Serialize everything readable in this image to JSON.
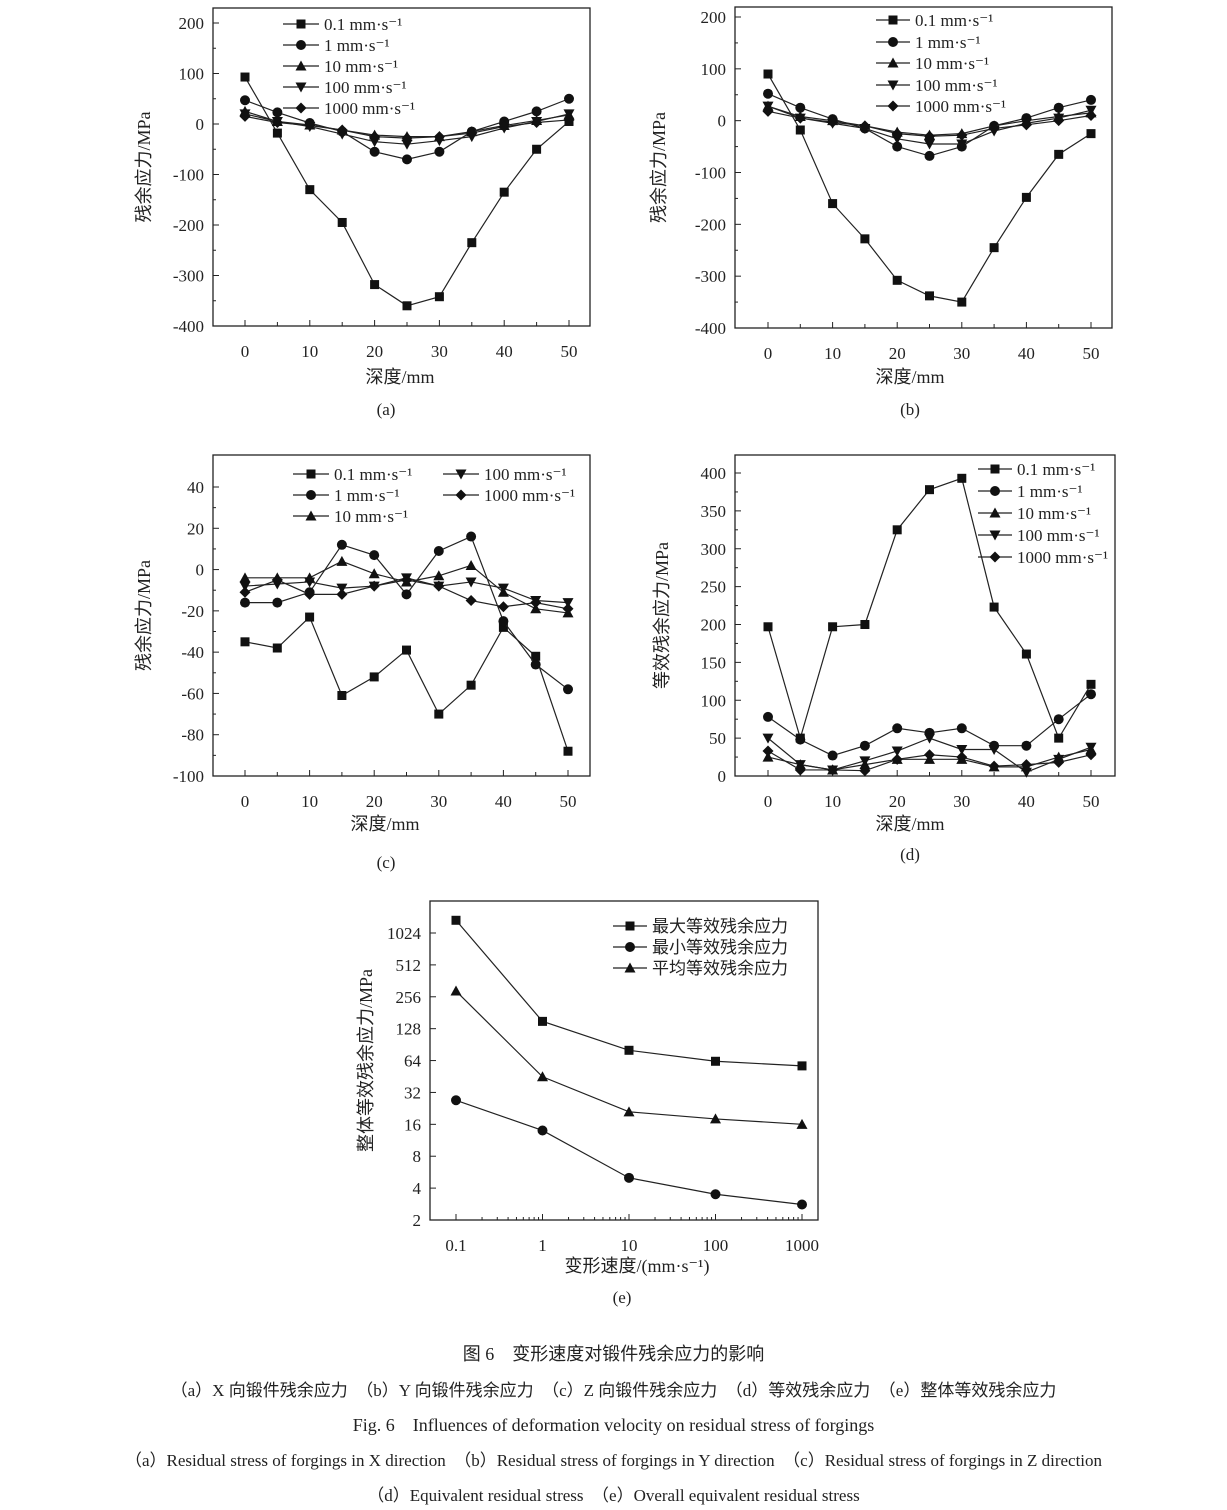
{
  "chart_data": [
    {
      "id": "a",
      "panel_label": "(a)",
      "type": "line",
      "xlabel": "深度/mm",
      "ylabel": "残余应力/MPa",
      "x": [
        0,
        5,
        10,
        15,
        20,
        25,
        30,
        35,
        40,
        45,
        50
      ],
      "xlim": [
        0,
        50
      ],
      "xticks": [
        0,
        10,
        20,
        30,
        40,
        50
      ],
      "ylim": [
        -400,
        200
      ],
      "yticks": [
        -400,
        -300,
        -200,
        -100,
        0,
        100,
        200
      ],
      "grid": false,
      "legend": "top-left",
      "series": [
        {
          "name": "0.1 mm·s⁻¹",
          "marker": "square",
          "values": [
            93,
            -18,
            -130,
            -195,
            -318,
            -360,
            -342,
            -235,
            -135,
            -50,
            5
          ]
        },
        {
          "name": "1 mm·s⁻¹",
          "marker": "circle",
          "values": [
            47,
            23,
            2,
            -15,
            -55,
            -70,
            -55,
            -15,
            5,
            25,
            50
          ]
        },
        {
          "name": "10 mm·s⁻¹",
          "marker": "triangle-up",
          "values": [
            25,
            5,
            -2,
            -12,
            -22,
            -25,
            -25,
            -15,
            -3,
            7,
            18
          ]
        },
        {
          "name": "100 mm·s⁻¹",
          "marker": "triangle-down",
          "values": [
            20,
            5,
            -5,
            -20,
            -35,
            -40,
            -33,
            -25,
            -8,
            5,
            20
          ]
        },
        {
          "name": "1000 mm·s⁻¹",
          "marker": "diamond",
          "values": [
            15,
            3,
            -3,
            -12,
            -25,
            -28,
            -25,
            -18,
            -5,
            3,
            8
          ]
        }
      ]
    },
    {
      "id": "b",
      "panel_label": "(b)",
      "type": "line",
      "xlabel": "深度/mm",
      "ylabel": "残余应力/MPa",
      "x": [
        0,
        5,
        10,
        15,
        20,
        25,
        30,
        35,
        40,
        45,
        50
      ],
      "xlim": [
        0,
        50
      ],
      "xticks": [
        0,
        10,
        20,
        30,
        40,
        50
      ],
      "ylim": [
        -400,
        200
      ],
      "yticks": [
        -400,
        -300,
        -200,
        -100,
        0,
        100,
        200
      ],
      "grid": false,
      "legend": "top-center",
      "series": [
        {
          "name": "0.1 mm·s⁻¹",
          "marker": "square",
          "values": [
            90,
            -18,
            -160,
            -228,
            -308,
            -338,
            -350,
            -245,
            -148,
            -65,
            -25
          ]
        },
        {
          "name": "1 mm·s⁻¹",
          "marker": "circle",
          "values": [
            52,
            25,
            3,
            -15,
            -50,
            -68,
            -50,
            -10,
            5,
            25,
            40
          ]
        },
        {
          "name": "10 mm·s⁻¹",
          "marker": "triangle-up",
          "values": [
            28,
            8,
            0,
            -10,
            -22,
            -28,
            -25,
            -10,
            0,
            8,
            15
          ]
        },
        {
          "name": "100 mm·s⁻¹",
          "marker": "triangle-down",
          "values": [
            28,
            5,
            -5,
            -15,
            -35,
            -45,
            -45,
            -20,
            -5,
            5,
            20
          ]
        },
        {
          "name": "1000 mm·s⁻¹",
          "marker": "diamond",
          "values": [
            18,
            5,
            -3,
            -10,
            -25,
            -30,
            -28,
            -15,
            -8,
            0,
            10
          ]
        }
      ]
    },
    {
      "id": "c",
      "panel_label": "(c)",
      "type": "line",
      "xlabel": "深度/mm",
      "ylabel": "残余应力/MPa",
      "x": [
        0,
        5,
        10,
        15,
        20,
        25,
        30,
        35,
        40,
        45,
        50
      ],
      "xlim": [
        0,
        50
      ],
      "xticks": [
        0,
        10,
        20,
        30,
        40,
        50
      ],
      "ylim": [
        -100,
        40
      ],
      "yticks": [
        -100,
        -80,
        -60,
        -40,
        -20,
        0,
        20,
        40
      ],
      "grid": false,
      "legend": "top (two columns)",
      "series": [
        {
          "name": "0.1 mm·s⁻¹",
          "marker": "square",
          "values": [
            -35,
            -38,
            -23,
            -61,
            -52,
            -39,
            -70,
            -56,
            -28,
            -42,
            -88
          ]
        },
        {
          "name": "1 mm·s⁻¹",
          "marker": "circle",
          "values": [
            -16,
            -16,
            -11,
            12,
            7,
            -12,
            9,
            16,
            -25,
            -46,
            -58
          ]
        },
        {
          "name": "10 mm·s⁻¹",
          "marker": "triangle-up",
          "values": [
            -4,
            -4,
            -4,
            4,
            -2,
            -6,
            -3,
            2,
            -11,
            -19,
            -21
          ]
        },
        {
          "name": "100 mm·s⁻¹",
          "marker": "triangle-down",
          "values": [
            -8,
            -7,
            -6,
            -9,
            -8,
            -4,
            -8,
            -6,
            -9,
            -15,
            -16
          ]
        },
        {
          "name": "1000 mm·s⁻¹",
          "marker": "diamond",
          "values": [
            -11,
            -5,
            -12,
            -12,
            -8,
            -5,
            -8,
            -15,
            -18,
            -16,
            -19
          ]
        }
      ]
    },
    {
      "id": "d",
      "panel_label": "(d)",
      "type": "line",
      "xlabel": "深度/mm",
      "ylabel": "等效残余应力/MPa",
      "x": [
        0,
        5,
        10,
        15,
        20,
        25,
        30,
        35,
        40,
        45,
        50
      ],
      "xlim": [
        0,
        50
      ],
      "xticks": [
        0,
        10,
        20,
        30,
        40,
        50
      ],
      "ylim": [
        0,
        400
      ],
      "yticks": [
        0,
        50,
        100,
        150,
        200,
        250,
        300,
        350,
        400
      ],
      "grid": false,
      "legend": "top-right",
      "series": [
        {
          "name": "0.1 mm·s⁻¹",
          "marker": "square",
          "values": [
            197,
            50,
            197,
            200,
            325,
            378,
            393,
            223,
            161,
            50,
            121
          ]
        },
        {
          "name": "1 mm·s⁻¹",
          "marker": "circle",
          "values": [
            78,
            48,
            27,
            40,
            63,
            57,
            63,
            40,
            40,
            75,
            108
          ]
        },
        {
          "name": "10 mm·s⁻¹",
          "marker": "triangle-up",
          "values": [
            25,
            15,
            8,
            15,
            22,
            22,
            22,
            12,
            12,
            25,
            35
          ]
        },
        {
          "name": "100 mm·s⁻¹",
          "marker": "triangle-down",
          "values": [
            50,
            15,
            8,
            20,
            33,
            50,
            35,
            35,
            5,
            22,
            38
          ]
        },
        {
          "name": "1000 mm·s⁻¹",
          "marker": "diamond",
          "values": [
            33,
            8,
            8,
            7,
            22,
            28,
            25,
            13,
            15,
            18,
            28
          ]
        }
      ]
    },
    {
      "id": "e",
      "panel_label": "(e)",
      "type": "line",
      "xlabel": "变形速度/(mm·s⁻¹)",
      "ylabel": "整体等效残余应力/MPa",
      "x": [
        0.1,
        1,
        10,
        100,
        1000
      ],
      "xscale": "log10",
      "xticks": [
        0.1,
        1,
        10,
        100,
        1000
      ],
      "yscale": "log2",
      "ylim": [
        2,
        2048
      ],
      "yticks": [
        2,
        4,
        8,
        16,
        32,
        64,
        128,
        256,
        512,
        1024
      ],
      "grid": false,
      "legend": "top-right",
      "series": [
        {
          "name": "最大等效残余应力",
          "marker": "square",
          "values": [
            1350,
            150,
            80,
            63,
            57
          ]
        },
        {
          "name": "最小等效残余应力",
          "marker": "circle",
          "values": [
            27,
            14,
            5,
            3.5,
            2.8
          ]
        },
        {
          "name": "平均等效残余应力",
          "marker": "triangle-up",
          "values": [
            290,
            45,
            21,
            18,
            16
          ]
        }
      ]
    }
  ],
  "caption": {
    "cn_title": "图 6　变形速度对锻件残余应力的影响",
    "cn_sub": "（a）X 向锻件残余应力　（b）Y 向锻件残余应力　（c）Z 向锻件残余应力　（d）等效残余应力　（e）整体等效残余应力",
    "en_title": "Fig. 6　Influences of deformation velocity on residual stress of forgings",
    "en_sub1": "（a）Residual stress of forgings in X direction　（b）Residual stress of forgings in Y direction　（c）Residual stress of forgings in Z direction",
    "en_sub2": "（d）Equivalent residual stress　（e）Overall equivalent residual stress"
  }
}
